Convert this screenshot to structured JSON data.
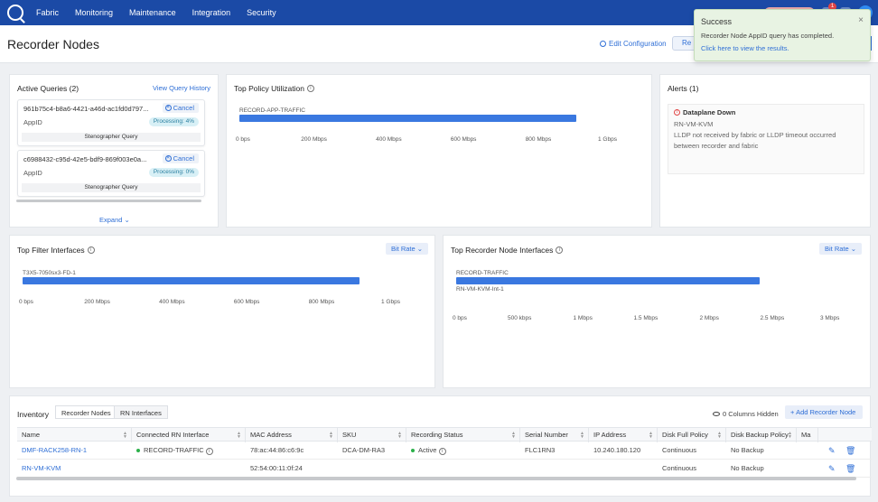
{
  "nav": {
    "items": [
      "Fabric",
      "Monitoring",
      "Maintenance",
      "Integration",
      "Security"
    ],
    "notification_count": "1"
  },
  "header": {
    "title": "Recorder Nodes",
    "edit_configuration": "Edit Configuration",
    "refresh_label": "Re"
  },
  "toast": {
    "title": "Success",
    "message": "Recorder Node AppID query has completed.",
    "link": "Click here to view the results.",
    "close": "×"
  },
  "active_queries": {
    "title": "Active Queries (2)",
    "history_link": "View Query History",
    "expand_label": "Expand",
    "items": [
      {
        "id": "961b75c4-b8a6-4421-a46d-ac1fd0d797...",
        "cancel": "Cancel",
        "type": "AppID",
        "status": "Processing: 4%",
        "kind": "Stenographer Query"
      },
      {
        "id": "c6988432-c95d-42e5-bdf9-869f003e0a...",
        "cancel": "Cancel",
        "type": "AppID",
        "status": "Processing: 0%",
        "kind": "Stenographer Query"
      }
    ]
  },
  "top_policy": {
    "title": "Top Policy Utilization",
    "chart_data": {
      "type": "bar",
      "orientation": "horizontal",
      "categories": [
        "RECORD-APP-TRAFFIC"
      ],
      "values": [
        0.9
      ],
      "unit": "Gbps",
      "xlim": [
        0,
        1
      ],
      "x_ticks": [
        "0 bps",
        "200 Mbps",
        "400 Mbps",
        "600 Mbps",
        "800 Mbps",
        "1 Gbps"
      ]
    }
  },
  "alerts": {
    "title": "Alerts (1)",
    "items": [
      {
        "title": "Dataplane Down",
        "source": "RN-VM-KVM",
        "message_line1": "LLDP not received by fabric or LLDP timeout occurred",
        "message_line2": "between recorder and fabric"
      }
    ]
  },
  "top_filter": {
    "title": "Top Filter Interfaces",
    "metric": "Bit Rate",
    "chart_data": {
      "type": "bar",
      "orientation": "horizontal",
      "categories": [
        "T3X5-7050sx3-FD-1"
      ],
      "values": [
        0.9
      ],
      "unit": "Gbps",
      "xlim": [
        0,
        1
      ],
      "x_ticks": [
        "0 bps",
        "200 Mbps",
        "400 Mbps",
        "600 Mbps",
        "800 Mbps",
        "1 Gbps"
      ]
    }
  },
  "top_recorder": {
    "title": "Top Recorder Node Interfaces",
    "metric": "Bit Rate",
    "chart_data": {
      "type": "bar",
      "orientation": "horizontal",
      "categories": [
        "RECORD-TRAFFIC",
        "RN-VM-KVM-Int-1"
      ],
      "values": [
        2.4,
        0
      ],
      "unit": "Mbps",
      "xlim": [
        0,
        3
      ],
      "x_ticks": [
        "0 bps",
        "500 kbps",
        "1 Mbps",
        "1.5 Mbps",
        "2 Mbps",
        "2.5 Mbps",
        "3 Mbps"
      ],
      "x_tick_values": [
        0,
        0.5,
        1,
        1.5,
        2,
        2.5,
        3
      ]
    }
  },
  "inventory": {
    "title": "Inventory",
    "tabs": [
      "Recorder Nodes",
      "RN Interfaces"
    ],
    "columns_hidden": "0 Columns Hidden",
    "add_button": "Add Recorder Node",
    "columns": [
      "Name",
      "Connected RN Interface",
      "MAC Address",
      "SKU",
      "Recording Status",
      "Serial Number",
      "IP Address",
      "Disk Full Policy",
      "Disk Backup Policy",
      "Ma"
    ],
    "rows": [
      {
        "name": "DMF-RACK258-RN-1",
        "interface": "RECORD-TRAFFIC",
        "mac": "78:ac:44:86:c6:9c",
        "sku": "DCA-DM-RA3",
        "status": "Active",
        "serial": "FLC1RN3",
        "ip": "10.240.180.120",
        "disk_full": "Continuous",
        "disk_backup": "No Backup"
      },
      {
        "name": "RN-VM-KVM",
        "interface": "",
        "mac": "52:54:00:11:0f:24",
        "sku": "",
        "status": "",
        "serial": "",
        "ip": "",
        "disk_full": "Continuous",
        "disk_backup": "No Backup"
      }
    ]
  }
}
